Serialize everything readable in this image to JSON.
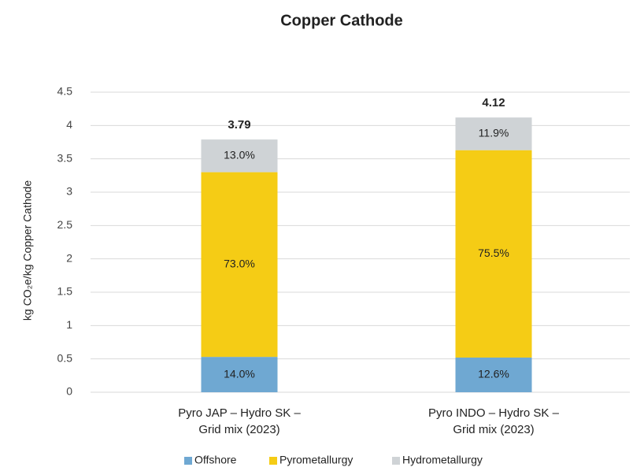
{
  "chart_data": {
    "type": "stacked_bar",
    "title": "Copper Cathode",
    "y_label": "kg CO₂e/kg Copper Cathode",
    "categories": [
      [
        "Pyro JAP – Hydro SK –",
        "Grid mix (2023)"
      ],
      [
        "Pyro INDO – Hydro SK –",
        "Grid mix (2023)"
      ]
    ],
    "series": [
      {
        "name": "Offshore",
        "color": "#6fa8d2",
        "values": [
          0.53,
          0.52
        ],
        "value_labels": [
          "14.0%",
          "12.6%"
        ]
      },
      {
        "name": "Pyrometallurgy",
        "color": "#f5cc15",
        "values": [
          2.77,
          3.11
        ],
        "value_labels": [
          "73.0%",
          "75.5%"
        ]
      },
      {
        "name": "Hydrometallurgy",
        "color": "#cfd3d6",
        "values": [
          0.49,
          0.49
        ],
        "value_labels": [
          "13.0%",
          "11.9%"
        ]
      }
    ],
    "totals": [
      3.79,
      4.12
    ],
    "ylim": [
      0,
      4.5
    ],
    "yticks": [
      0,
      0.5,
      1,
      1.5,
      2,
      2.5,
      3,
      3.5,
      4,
      4.5
    ],
    "grid": true,
    "legend": "bottom"
  }
}
